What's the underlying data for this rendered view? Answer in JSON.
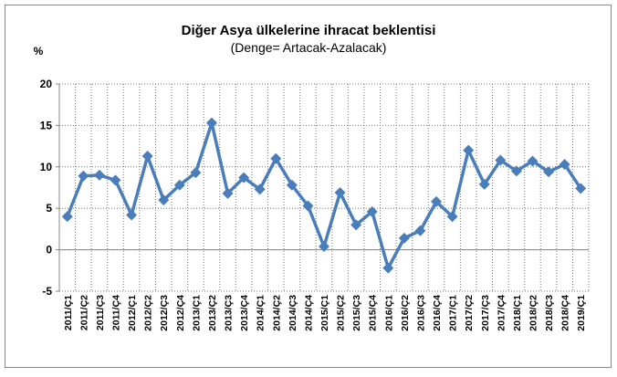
{
  "chart_data": {
    "type": "line",
    "title": "Diğer Asya ülkelerine ihracat beklentisi",
    "subtitle": "(Denge= Artacak-Azalacak)",
    "y_label": "%",
    "categories": [
      "2011/Ç1",
      "2011/Ç2",
      "2011/Ç3",
      "2011/Ç4",
      "2012/Ç1",
      "2012/Ç2",
      "2012/Ç3",
      "2012/Ç4",
      "2013/Ç1",
      "2013/Ç2",
      "2013/Ç3",
      "2013/Ç4",
      "2014/Ç1",
      "2014/Ç2",
      "2014/Ç3",
      "2014/Ç4",
      "2015/Ç1",
      "2015/Ç2",
      "2015/Ç3",
      "2015/Ç4",
      "2016/Ç1",
      "2016/Ç2",
      "2016/Ç3",
      "2016/Ç4",
      "2017/Ç1",
      "2017/Ç2",
      "2017/Ç3",
      "2017/Ç4",
      "2018/Ç1",
      "2018/Ç2",
      "2018/Ç3",
      "2018/Ç4",
      "2019/Ç1"
    ],
    "values": [
      4.0,
      8.9,
      9.0,
      8.4,
      4.2,
      11.3,
      6.0,
      7.8,
      9.3,
      15.3,
      6.8,
      8.7,
      7.3,
      11.0,
      7.8,
      5.3,
      0.4,
      6.9,
      3.0,
      4.6,
      -2.2,
      1.4,
      2.3,
      5.8,
      4.0,
      12.0,
      7.9,
      10.8,
      9.5,
      10.7,
      9.4,
      10.3,
      7.4
    ],
    "color": "#4a7ebb",
    "ylim": [
      -5,
      20
    ],
    "yticks": [
      -5,
      0,
      5,
      10,
      15,
      20
    ],
    "grid": true
  }
}
